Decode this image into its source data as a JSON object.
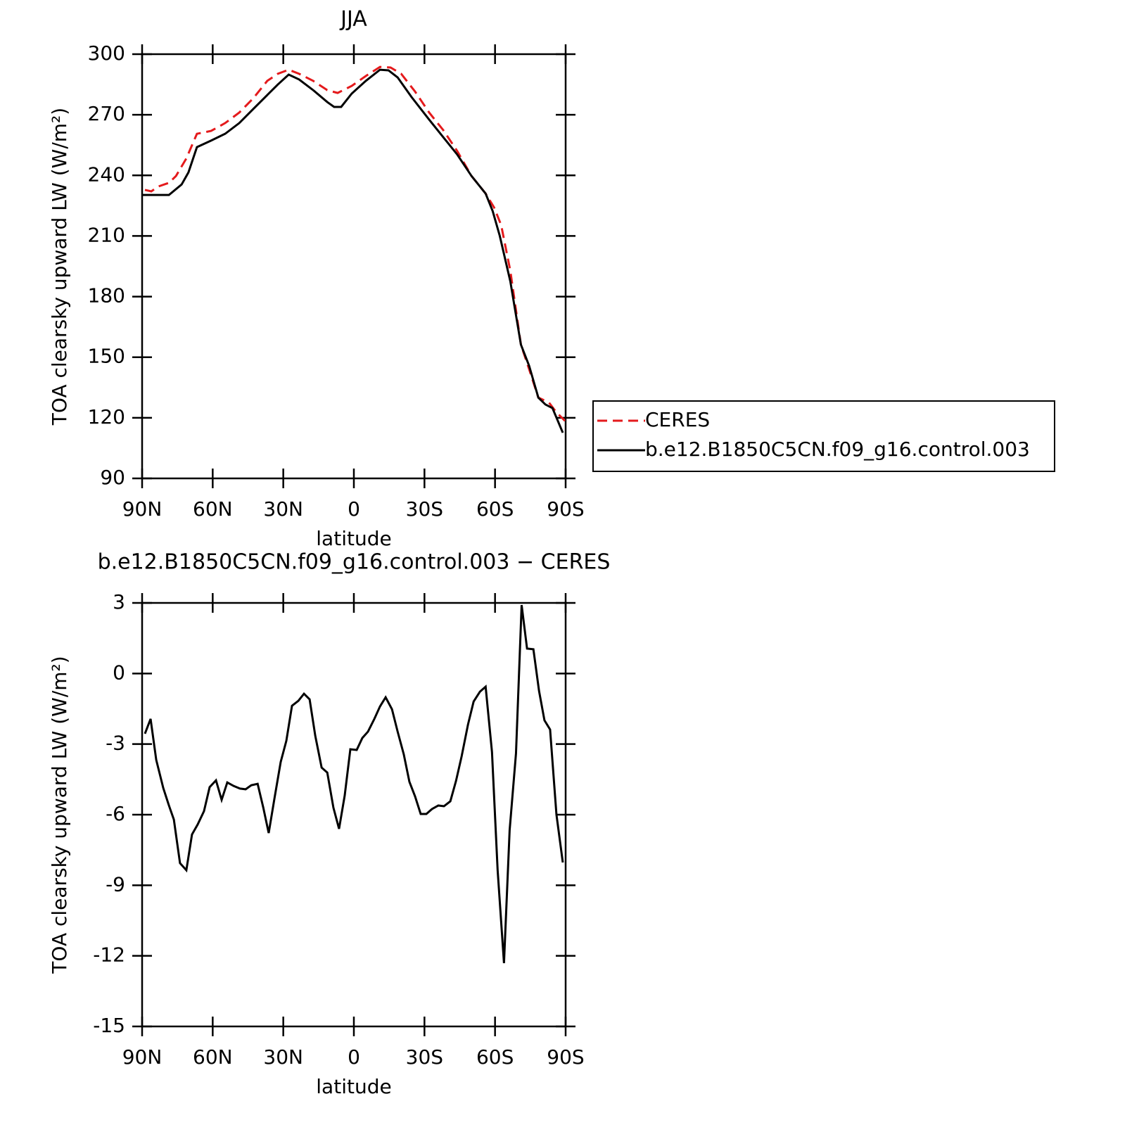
{
  "chart_data": [
    {
      "type": "line",
      "title": "JJA",
      "xlabel": "latitude",
      "ylabel": "TOA clearsky upward LW (W/m²)",
      "xlim": [
        90,
        -90
      ],
      "ylim": [
        90,
        300
      ],
      "xticks": [
        {
          "value": 90,
          "label": "90N"
        },
        {
          "value": 60,
          "label": "60N"
        },
        {
          "value": 30,
          "label": "30N"
        },
        0,
        {
          "value": -30,
          "label": "30S"
        },
        {
          "value": -60,
          "label": "60S"
        },
        {
          "value": -90,
          "label": "90S"
        }
      ],
      "yticks": [
        90,
        120,
        150,
        180,
        210,
        240,
        270,
        300
      ],
      "legend": "right",
      "series": [
        {
          "name": "CERES",
          "color": "#e41a1c",
          "dash": true,
          "x": [
            88.8,
            86.1,
            83.1,
            78.6,
            75.6,
            71.2,
            66.7,
            60.7,
            54.7,
            48.7,
            42.8,
            36.8,
            32.3,
            27.7,
            23.3,
            17.3,
            11.3,
            6.9,
            0.9,
            -5.1,
            -11.1,
            -15.6,
            -20.1,
            -26,
            -32,
            -38,
            -44,
            -50,
            -56,
            -59.6,
            -62.6,
            -66.5,
            -71,
            -74.5,
            -78.4,
            -82.9,
            -85.8,
            -89.7
          ],
          "values": [
            232.8,
            232.1,
            234.5,
            236.3,
            239.7,
            248.4,
            260.6,
            262,
            265.9,
            271.1,
            278.1,
            286.8,
            290.3,
            292.3,
            290.3,
            286.8,
            282.2,
            280.8,
            284.3,
            289.2,
            293.7,
            293.4,
            290.3,
            281.5,
            271.1,
            262.4,
            251.9,
            239.7,
            231,
            224.1,
            215.4,
            192.7,
            156.2,
            144,
            130,
            127.6,
            123.1,
            118.5
          ]
        },
        {
          "name": "b.e12.B1850C5CN.f09_g16.control.003",
          "color": "#000000",
          "x": [
            90,
            84.6,
            78.6,
            73.2,
            70.3,
            66.7,
            60.7,
            54.7,
            48.7,
            42.8,
            36.8,
            32.3,
            27.7,
            23.3,
            17.3,
            11.3,
            8.4,
            5.4,
            0.9,
            -5.1,
            -11.1,
            -14.7,
            -18.6,
            -24.5,
            -32,
            -38,
            -44,
            -50,
            -56,
            -59,
            -62,
            -66.5,
            -71,
            -74.5,
            -78.4,
            -81.4,
            -84.4,
            -88.8
          ],
          "values": [
            230.3,
            230.3,
            230.3,
            235.5,
            241.5,
            254,
            257.2,
            260.6,
            265.9,
            272.8,
            279.8,
            285,
            289.9,
            287.5,
            282.2,
            276.3,
            273.9,
            273.9,
            280.5,
            286.8,
            292.3,
            292,
            288.5,
            278.8,
            267.6,
            258.9,
            250.2,
            239.7,
            231,
            222.3,
            210.1,
            187.5,
            156.2,
            145.7,
            130,
            126.6,
            124.8,
            112.6
          ]
        }
      ]
    },
    {
      "type": "line",
      "title": "b.e12.B1850C5CN.f09_g16.control.003 − CERES",
      "xlabel": "latitude",
      "ylabel": "TOA clearsky upward LW (W/m²)",
      "xlim": [
        90,
        -90
      ],
      "ylim": [
        -15,
        3
      ],
      "xticks": [
        {
          "value": 90,
          "label": "90N"
        },
        {
          "value": 60,
          "label": "60N"
        },
        {
          "value": 30,
          "label": "30N"
        },
        0,
        {
          "value": -30,
          "label": "30S"
        },
        {
          "value": -60,
          "label": "60S"
        },
        {
          "value": -90,
          "label": "90S"
        }
      ],
      "yticks": [
        -15,
        -12,
        -9,
        -6,
        -3,
        0,
        3
      ],
      "series": [
        {
          "color": "#000000",
          "x": [
            88.8,
            86.4,
            84,
            81,
            78.6,
            76.5,
            73.9,
            71.2,
            68.8,
            66.4,
            63.7,
            61.3,
            58.6,
            56.2,
            53.8,
            51.1,
            48.4,
            46,
            43.6,
            40.9,
            38.5,
            36.2,
            33.8,
            31.1,
            28.7,
            26.3,
            23.6,
            21.2,
            18.8,
            16.4,
            13.7,
            11.3,
            8.7,
            6.3,
            3.9,
            1.5,
            -1.2,
            -3.6,
            -6,
            -8.7,
            -11.1,
            -13.5,
            -16.2,
            -18.6,
            -21.2,
            -23.6,
            -26,
            -28.4,
            -30.8,
            -33.2,
            -35.9,
            -38.3,
            -41,
            -43.4,
            -45.8,
            -48.5,
            -50.9,
            -53.6,
            -56,
            -58.7,
            -61.1,
            -63.8,
            -66.2,
            -68.9,
            -71.3,
            -73.6,
            -76.3,
            -78.7,
            -81,
            -83.4,
            -86.1,
            -88.8
          ],
          "values": [
            -2.56,
            -1.93,
            -3.67,
            -4.87,
            -5.61,
            -6.21,
            -8.06,
            -8.36,
            -6.84,
            -6.42,
            -5.85,
            -4.83,
            -4.54,
            -5.37,
            -4.63,
            -4.78,
            -4.89,
            -4.92,
            -4.75,
            -4.69,
            -5.7,
            -6.78,
            -5.34,
            -3.76,
            -2.86,
            -1.37,
            -1.16,
            -0.86,
            -1.1,
            -2.65,
            -4,
            -4.21,
            -5.7,
            -6.6,
            -5.19,
            -3.22,
            -3.25,
            -2.74,
            -2.47,
            -1.93,
            -1.4,
            -1.01,
            -1.52,
            -2.47,
            -3.43,
            -4.6,
            -5.22,
            -5.97,
            -5.97,
            -5.76,
            -5.61,
            -5.64,
            -5.43,
            -4.57,
            -3.52,
            -2.17,
            -1.19,
            -0.77,
            -0.56,
            -3.34,
            -8.36,
            -12.31,
            -6.66,
            -3.4,
            2.91,
            1.06,
            1.03,
            -0.74,
            -1.99,
            -2.38,
            -6,
            -8.03
          ]
        }
      ]
    }
  ]
}
